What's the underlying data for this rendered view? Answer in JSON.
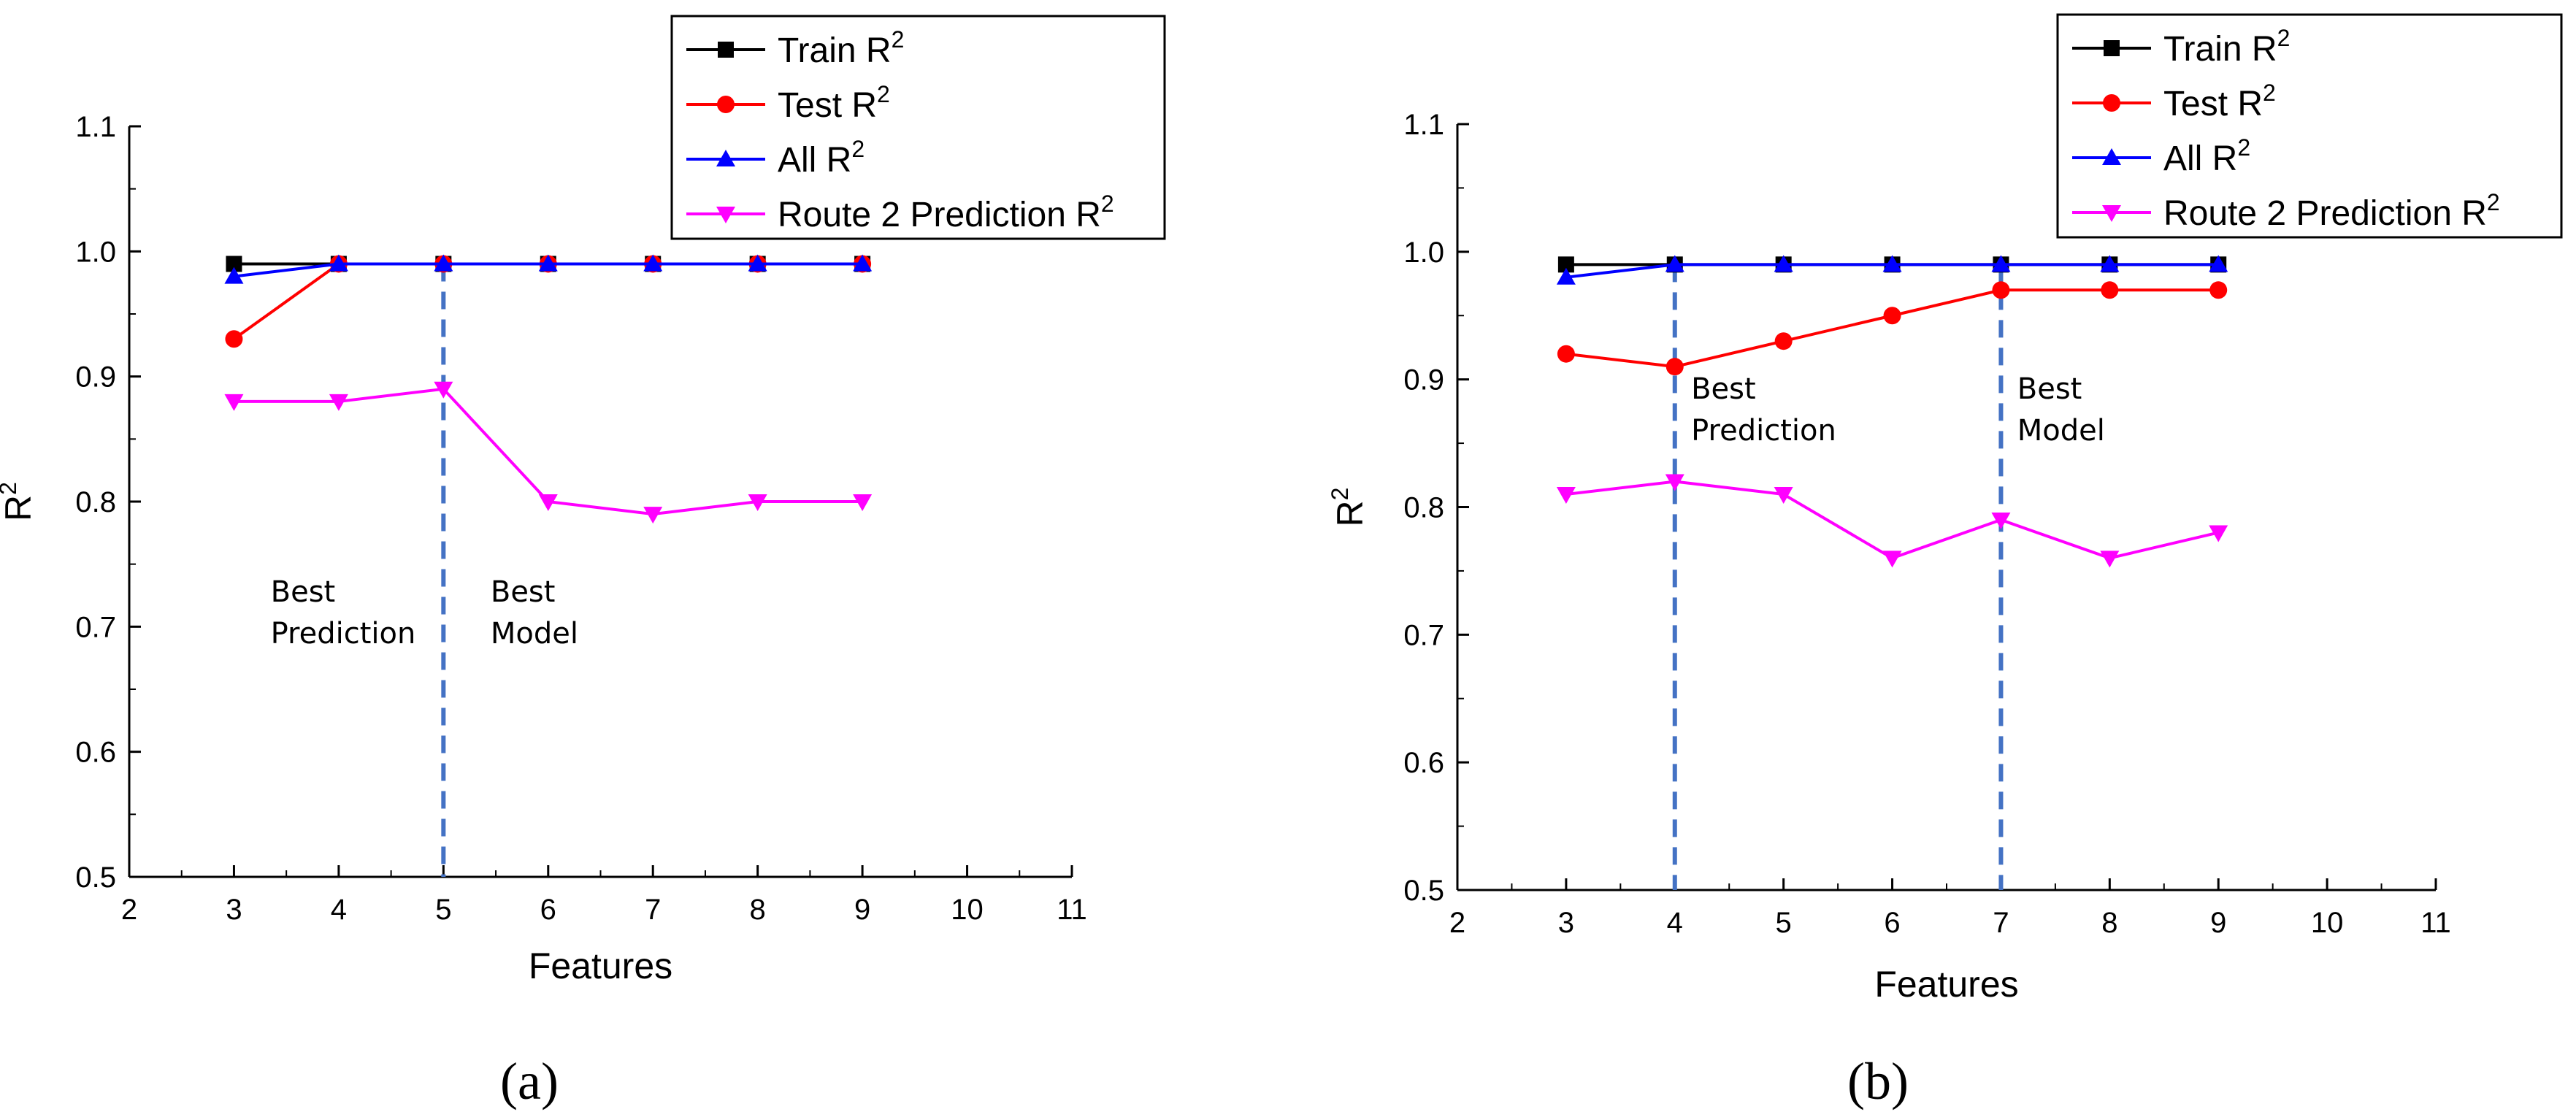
{
  "chart_data": [
    {
      "type": "line",
      "panel_label": "(a)",
      "xlabel": "Features",
      "ylabel": "R",
      "ylabel_sup": "2",
      "xlim": [
        2,
        11
      ],
      "ylim": [
        0.5,
        1.1
      ],
      "xticks": [
        "2",
        "3",
        "4",
        "5",
        "6",
        "7",
        "8",
        "9",
        "10",
        "11"
      ],
      "yticks": [
        "0.5",
        "0.6",
        "0.7",
        "0.8",
        "0.9",
        "1.0",
        "1.1"
      ],
      "x": [
        3,
        4,
        5,
        6,
        7,
        8,
        9
      ],
      "series": [
        {
          "name": "Train R",
          "sup": "2",
          "color": "#000000",
          "marker": "square",
          "values": [
            0.99,
            0.99,
            0.99,
            0.99,
            0.99,
            0.99,
            0.99
          ]
        },
        {
          "name": "Test R",
          "sup": "2",
          "color": "#ff0000",
          "marker": "circle",
          "values": [
            0.93,
            0.99,
            0.99,
            0.99,
            0.99,
            0.99,
            0.99
          ]
        },
        {
          "name": "All R",
          "sup": "2",
          "color": "#0000ff",
          "marker": "triangle-up",
          "values": [
            0.98,
            0.99,
            0.99,
            0.99,
            0.99,
            0.99,
            0.99
          ]
        },
        {
          "name": "Route 2 Prediction R",
          "sup": "2",
          "color": "#ff00ff",
          "marker": "triangle-down",
          "values": [
            0.88,
            0.88,
            0.89,
            0.8,
            0.79,
            0.8,
            0.8
          ]
        }
      ],
      "vlines": [
        5
      ],
      "vline_color": "#4472c4",
      "annotations": [
        {
          "lines": [
            "Best",
            "Prediction"
          ],
          "x": 3.35,
          "y": 0.72
        },
        {
          "lines": [
            "Best",
            "Model"
          ],
          "x": 5.45,
          "y": 0.72
        }
      ]
    },
    {
      "type": "line",
      "panel_label": "(b)",
      "xlabel": "Features",
      "ylabel": "R",
      "ylabel_sup": "2",
      "xlim": [
        2,
        11
      ],
      "ylim": [
        0.5,
        1.1
      ],
      "xticks": [
        "2",
        "3",
        "4",
        "5",
        "6",
        "7",
        "8",
        "9",
        "10",
        "11"
      ],
      "yticks": [
        "0.5",
        "0.6",
        "0.7",
        "0.8",
        "0.9",
        "1.0",
        "1.1"
      ],
      "x": [
        3,
        4,
        5,
        6,
        7,
        8,
        9
      ],
      "series": [
        {
          "name": "Train R",
          "sup": "2",
          "color": "#000000",
          "marker": "square",
          "values": [
            0.99,
            0.99,
            0.99,
            0.99,
            0.99,
            0.99,
            0.99
          ]
        },
        {
          "name": "Test R",
          "sup": "2",
          "color": "#ff0000",
          "marker": "circle",
          "values": [
            0.92,
            0.91,
            0.93,
            0.95,
            0.97,
            0.97,
            0.97
          ]
        },
        {
          "name": "All R",
          "sup": "2",
          "color": "#0000ff",
          "marker": "triangle-up",
          "values": [
            0.98,
            0.99,
            0.99,
            0.99,
            0.99,
            0.99,
            0.99
          ]
        },
        {
          "name": "Route 2 Prediction R",
          "sup": "2",
          "color": "#ff00ff",
          "marker": "triangle-down",
          "values": [
            0.81,
            0.82,
            0.81,
            0.76,
            0.79,
            0.76,
            0.78
          ]
        }
      ],
      "vlines": [
        4,
        7
      ],
      "vline_color": "#4472c4",
      "annotations": [
        {
          "lines": [
            "Best",
            "Prediction"
          ],
          "x": 4.15,
          "y": 0.885
        },
        {
          "lines": [
            "Best",
            "Model"
          ],
          "x": 7.15,
          "y": 0.885
        }
      ]
    }
  ]
}
